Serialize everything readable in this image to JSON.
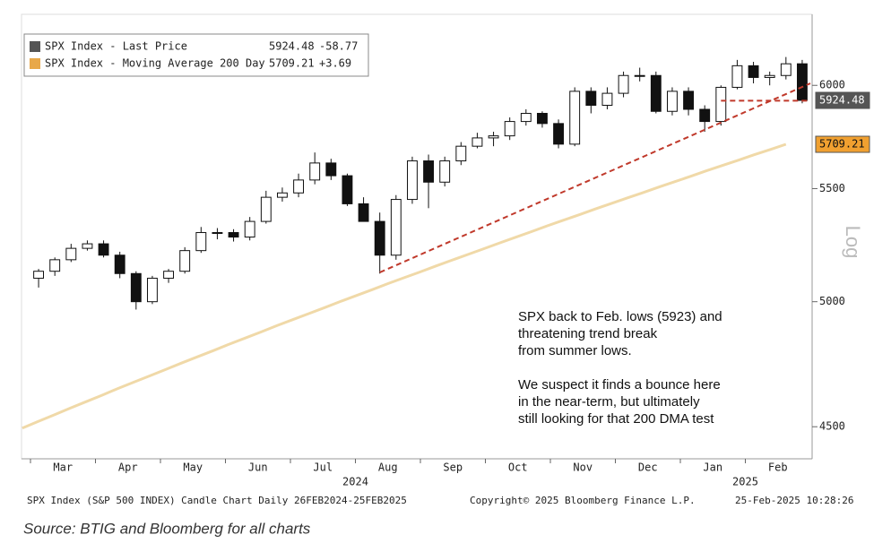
{
  "chart_data": {
    "type": "candlestick",
    "legend": [
      {
        "name": "SPX Index - Last Price",
        "color": "#555555",
        "value": "5924.48",
        "change": "-58.77"
      },
      {
        "name": "SPX Index - Moving Average 200 Day",
        "color": "#e8a84a",
        "value": "5709.21",
        "change": "+3.69"
      }
    ],
    "categories": [
      "Mar",
      "Apr",
      "May",
      "Jun",
      "Jul",
      "Aug",
      "Sep",
      "Oct",
      "Nov",
      "Dec",
      "Jan",
      "Feb"
    ],
    "year_labels": [
      "2024",
      "2025"
    ],
    "open": [
      5100,
      5130,
      5180,
      5230,
      5250,
      5200,
      5120,
      5000,
      5100,
      5130,
      5220,
      5300,
      5300,
      5280,
      5350,
      5460,
      5480,
      5540,
      5620,
      5560,
      5430,
      5350,
      5200,
      5450,
      5630,
      5530,
      5630,
      5700,
      5740,
      5750,
      5820,
      5860,
      5810,
      5710,
      5970,
      5900,
      5960,
      6050,
      6050,
      5870,
      5970,
      5880,
      5820,
      5990,
      6100,
      6040,
      6050,
      6110
    ],
    "high": [
      5140,
      5190,
      5250,
      5265,
      5265,
      5215,
      5130,
      5110,
      5140,
      5235,
      5325,
      5320,
      5315,
      5370,
      5490,
      5505,
      5570,
      5670,
      5640,
      5570,
      5460,
      5390,
      5470,
      5650,
      5660,
      5650,
      5720,
      5765,
      5770,
      5840,
      5880,
      5870,
      5830,
      5990,
      5990,
      5990,
      6070,
      6090,
      6070,
      5990,
      5990,
      5900,
      6000,
      6130,
      6120,
      6070,
      6145,
      6130
    ],
    "low": [
      5060,
      5110,
      5170,
      5220,
      5190,
      5100,
      4967,
      4990,
      5080,
      5120,
      5210,
      5270,
      5260,
      5265,
      5340,
      5440,
      5460,
      5520,
      5540,
      5420,
      5360,
      5120,
      5180,
      5430,
      5410,
      5510,
      5610,
      5690,
      5700,
      5730,
      5800,
      5790,
      5690,
      5700,
      5860,
      5880,
      5940,
      6020,
      5860,
      5850,
      5850,
      5770,
      5800,
      5980,
      6010,
      6000,
      6030,
      5910
    ],
    "close": [
      5130,
      5180,
      5230,
      5250,
      5200,
      5120,
      5000,
      5100,
      5130,
      5220,
      5300,
      5300,
      5280,
      5350,
      5460,
      5480,
      5540,
      5620,
      5560,
      5430,
      5350,
      5200,
      5450,
      5630,
      5530,
      5630,
      5700,
      5740,
      5750,
      5820,
      5860,
      5810,
      5710,
      5970,
      5900,
      5960,
      6050,
      6050,
      5870,
      5970,
      5880,
      5820,
      5990,
      6100,
      6040,
      6050,
      6110,
      5924.48
    ],
    "moving_average": [
      4495,
      4520,
      4545,
      4571,
      4596,
      4621,
      4647,
      4672,
      4697,
      4722,
      4748,
      4773,
      4798,
      4824,
      4849,
      4874,
      4900,
      4925,
      4950,
      4975,
      5001,
      5026,
      5051,
      5077,
      5102,
      5127,
      5153,
      5178,
      5203,
      5228,
      5254,
      5279,
      5304,
      5330,
      5355,
      5380,
      5406,
      5431,
      5456,
      5481,
      5507,
      5532,
      5557,
      5583,
      5608,
      5633,
      5659,
      5684,
      5709.21
    ],
    "ylim": [
      4380,
      6370
    ],
    "yticks": [
      4500,
      5000,
      5500,
      6000
    ],
    "log_scale": true,
    "y_axis_label": "Log",
    "trend_line": [
      5125,
      6010
    ],
    "support_line": 5923,
    "annotation": [
      "SPX back to Feb. lows (5923) and",
      "threatening trend break",
      "from summer lows.",
      "",
      "We suspect it finds a bounce here",
      "in the near-term, but ultimately",
      "still looking for that 200 DMA test"
    ],
    "footer": [
      "SPX Index (S&P 500 INDEX) Candle Chart  Daily 26FEB2024-25FEB2025",
      "Copyright© 2025 Bloomberg Finance L.P.",
      "25-Feb-2025 10:28:26"
    ],
    "source": "Source: BTIG and Bloomberg for all charts"
  }
}
